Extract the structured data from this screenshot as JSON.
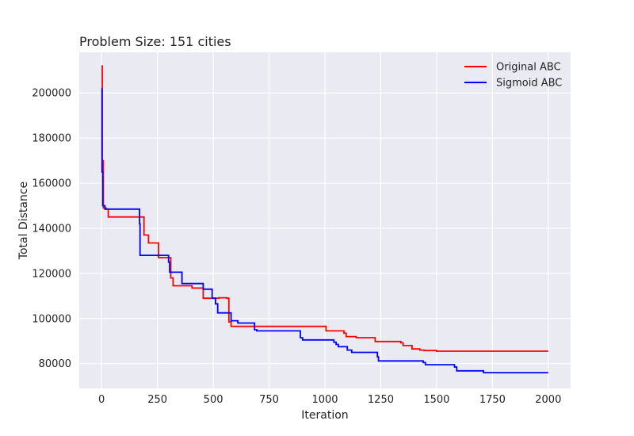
{
  "chart_data": {
    "type": "line",
    "title": "Problem Size: 151 cities",
    "xlabel": "Iteration",
    "ylabel": "Total Distance",
    "xlim": [
      -100,
      2100
    ],
    "ylim": [
      69000,
      218000
    ],
    "xticks": [
      0,
      250,
      500,
      750,
      1000,
      1250,
      1500,
      1750,
      2000
    ],
    "xtick_labels": [
      "0",
      "250",
      "500",
      "750",
      "1000",
      "1250",
      "1500",
      "1750",
      "2000"
    ],
    "yticks": [
      80000,
      100000,
      120000,
      140000,
      160000,
      180000,
      200000
    ],
    "ytick_labels": [
      "80000",
      "100000",
      "120000",
      "140000",
      "160000",
      "180000",
      "200000"
    ],
    "grid": true,
    "legend_position": "top-right",
    "background_color": "#eaeaf2",
    "series": [
      {
        "name": "Original ABC",
        "color": "#ff0000",
        "step": true,
        "points": [
          [
            0,
            212000
          ],
          [
            3,
            170000
          ],
          [
            8,
            149000
          ],
          [
            20,
            148500
          ],
          [
            30,
            145000
          ],
          [
            190,
            137000
          ],
          [
            210,
            133500
          ],
          [
            255,
            127000
          ],
          [
            310,
            118000
          ],
          [
            320,
            114500
          ],
          [
            405,
            113500
          ],
          [
            455,
            109000
          ],
          [
            525,
            109200
          ],
          [
            560,
            109000
          ],
          [
            570,
            98500
          ],
          [
            580,
            96500
          ],
          [
            1005,
            94500
          ],
          [
            1085,
            93500
          ],
          [
            1095,
            92000
          ],
          [
            1140,
            91500
          ],
          [
            1225,
            89800
          ],
          [
            1340,
            89200
          ],
          [
            1350,
            88000
          ],
          [
            1390,
            86500
          ],
          [
            1425,
            86000
          ],
          [
            1445,
            85800
          ],
          [
            1500,
            85500
          ],
          [
            2000,
            85500
          ]
        ]
      },
      {
        "name": "Sigmoid ABC",
        "color": "#0000ff",
        "step": true,
        "points": [
          [
            0,
            202000
          ],
          [
            2,
            165000
          ],
          [
            5,
            150000
          ],
          [
            15,
            148500
          ],
          [
            170,
            142000
          ],
          [
            172,
            128000
          ],
          [
            300,
            125000
          ],
          [
            305,
            120500
          ],
          [
            360,
            115500
          ],
          [
            455,
            113000
          ],
          [
            495,
            109000
          ],
          [
            510,
            106500
          ],
          [
            520,
            102500
          ],
          [
            580,
            99000
          ],
          [
            610,
            98000
          ],
          [
            685,
            95000
          ],
          [
            695,
            94500
          ],
          [
            890,
            91500
          ],
          [
            900,
            90500
          ],
          [
            1040,
            89500
          ],
          [
            1050,
            88500
          ],
          [
            1060,
            87500
          ],
          [
            1100,
            86000
          ],
          [
            1120,
            85000
          ],
          [
            1235,
            83000
          ],
          [
            1240,
            81200
          ],
          [
            1440,
            80500
          ],
          [
            1450,
            79500
          ],
          [
            1580,
            78500
          ],
          [
            1590,
            76800
          ],
          [
            1710,
            76000
          ],
          [
            2000,
            76000
          ]
        ]
      }
    ]
  }
}
